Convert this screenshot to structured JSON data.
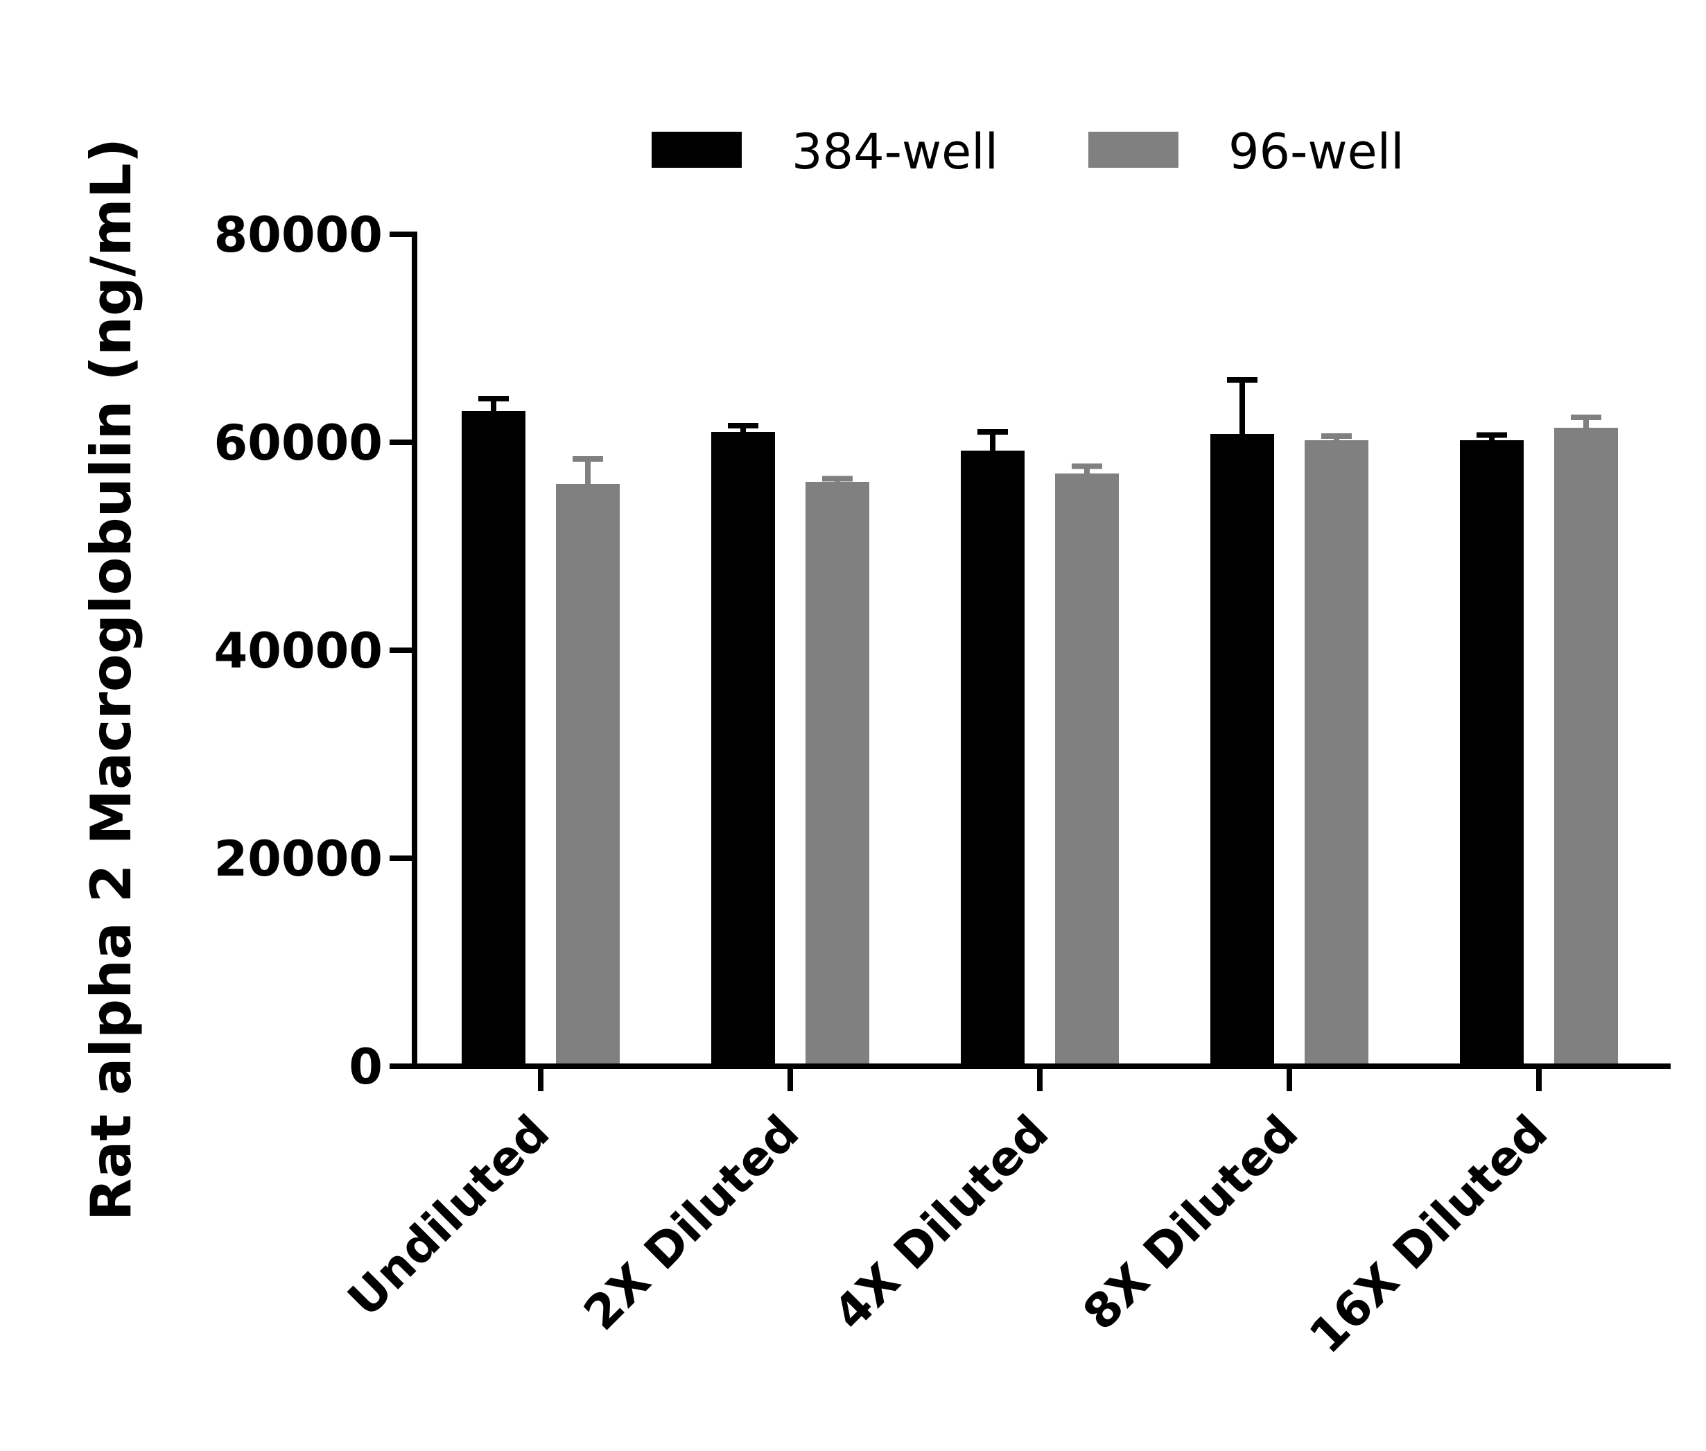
{
  "chart_data": {
    "type": "bar",
    "title": "",
    "xlabel": "",
    "ylabel": "Rat alpha 2 Macroglobulin (ng/mL)",
    "ylim": [
      0,
      80000
    ],
    "yticks": [
      0,
      20000,
      40000,
      60000,
      80000
    ],
    "ytick_labels": [
      "0",
      "20000",
      "40000",
      "60000",
      "80000"
    ],
    "categories": [
      "Undiluted",
      "2X Diluted",
      "4X Diluted",
      "8X Diluted",
      "16X Diluted"
    ],
    "series": [
      {
        "name": "384-well",
        "color": "#000000",
        "values": [
          63000,
          61000,
          59200,
          60800,
          60200
        ],
        "errors": [
          1200,
          600,
          1800,
          5200,
          500
        ]
      },
      {
        "name": "96-well",
        "color": "#808080",
        "values": [
          56000,
          56200,
          57000,
          60200,
          61400
        ],
        "errors": [
          2400,
          300,
          700,
          400,
          1000
        ]
      }
    ],
    "legend_position": "top",
    "grid": false
  }
}
